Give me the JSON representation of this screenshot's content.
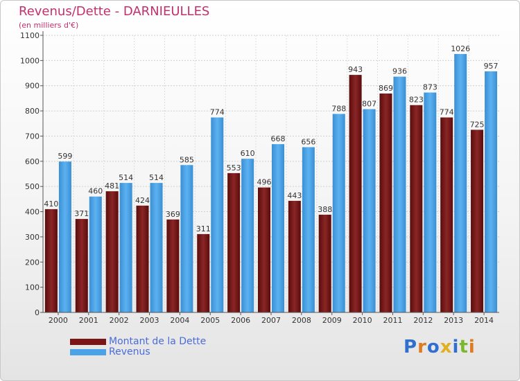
{
  "title": "Revenus/Dette - DARNIEULLES",
  "subtitle": "(en milliers d'€)",
  "logo": "Proxiti",
  "colors": {
    "dette": "#7a1616",
    "revenus": "#4aa3e6",
    "title": "#c0306e",
    "legend_text": "#4a6cd8"
  },
  "chart_data": {
    "type": "bar",
    "title": "Revenus/Dette - DARNIEULLES",
    "subtitle": "(en milliers d'€)",
    "categories": [
      "2000",
      "2001",
      "2002",
      "2003",
      "2004",
      "2005",
      "2006",
      "2007",
      "2008",
      "2009",
      "2010",
      "2011",
      "2012",
      "2013",
      "2014"
    ],
    "series": [
      {
        "name": "Montant de la Dette",
        "values": [
          410,
          371,
          481,
          424,
          369,
          311,
          553,
          496,
          443,
          388,
          943,
          869,
          823,
          774,
          725
        ],
        "labels": [
          "410",
          "371",
          "481",
          "424",
          "369",
          "311",
          "553",
          "496",
          "443",
          "388",
          "943",
          "869",
          "823",
          "774",
          "725"
        ]
      },
      {
        "name": "Revenus",
        "values": [
          599,
          460,
          514,
          514,
          585,
          774,
          610,
          668,
          656,
          788,
          807,
          936,
          873,
          1026,
          957
        ],
        "labels": [
          "599",
          "460",
          "514",
          "514",
          "585",
          "774",
          "610",
          "668",
          "656",
          "788",
          "807",
          "936",
          "873",
          "1026",
          "957"
        ]
      }
    ],
    "yticks": [
      0,
      100,
      200,
      300,
      400,
      500,
      600,
      700,
      800,
      900,
      1000,
      1100
    ],
    "ylim": [
      0,
      1100
    ],
    "grid": true,
    "legend": "bottom-left"
  }
}
